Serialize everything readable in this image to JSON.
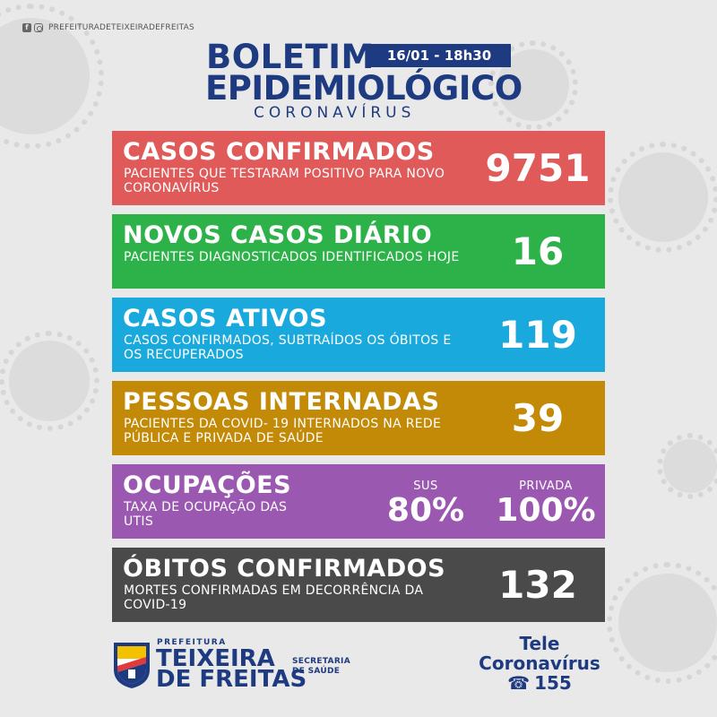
{
  "social": {
    "handle": "PREFEITURADETEIXEIRADEFREITAS",
    "facebook_icon": "facebook-icon",
    "instagram_icon": "instagram-icon"
  },
  "header": {
    "title_line1": "BOLETIM",
    "title_line2": "EPIDEMIOLÓGICO",
    "date": "16/01 - 18h30",
    "subtitle": "CORONAVÍRUS"
  },
  "cards": {
    "confirmed": {
      "title": "CASOS CONFIRMADOS",
      "desc": "PACIENTES QUE TESTARAM POSITIVO PARA NOVO CORONAVÍRUS",
      "value": "9751",
      "color": "#e05a5a"
    },
    "new_daily": {
      "title": "NOVOS CASOS DIÁRIO",
      "desc": "PACIENTES DIAGNOSTICADOS IDENTIFICADOS HOJE",
      "value": "16",
      "color": "#2db24a"
    },
    "active": {
      "title": "CASOS ATIVOS",
      "desc": "CASOS CONFIRMADOS, SUBTRAÍDOS OS ÓBITOS E OS RECUPERADOS",
      "value": "119",
      "color": "#19a9dc"
    },
    "hospitalized": {
      "title": "PESSOAS INTERNADAS",
      "desc": "PACIENTES DA COVID- 19 INTERNADOS NA REDE PÚBLICA E PRIVADA DE SAÚDE",
      "value": "39",
      "color": "#c28a06"
    },
    "occupancy": {
      "title": "OCUPAÇÕES",
      "desc": "TAXA DE OCUPAÇÃO DAS UTIs",
      "sus_label": "SUS",
      "sus_value": "80%",
      "private_label": "PRIVADA",
      "private_value": "100%",
      "color": "#9a58b0"
    },
    "deaths": {
      "title": "ÓBITOS CONFIRMADOS",
      "desc": "MORTES CONFIRMADAS EM DECORRÊNCIA DA COVID-19",
      "value": "132",
      "color": "#4a4a4a"
    }
  },
  "footer": {
    "logo_prefix": "PREFEITURA",
    "logo_line1": "TEIXEIRA",
    "logo_line2": "DE FREITAS",
    "secretaria_line1": "SECRETARIA",
    "secretaria_line2": "DE SAÚDE",
    "tele_line1": "Tele",
    "tele_line2": "Coronavírus",
    "tele_number": "155",
    "phone_icon": "phone-icon"
  }
}
